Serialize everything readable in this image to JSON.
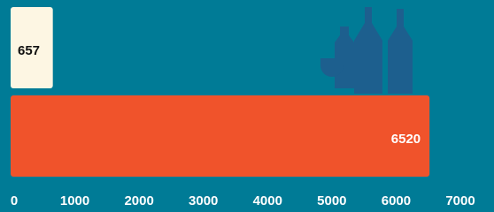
{
  "chart_data": {
    "type": "bar",
    "orientation": "horizontal",
    "categories": [
      null,
      null
    ],
    "values": [
      657,
      6520
    ],
    "colors": [
      "#fdf6e3",
      "#f0532b"
    ],
    "xlim": [
      0,
      7000
    ],
    "xticks": [
      0,
      1000,
      2000,
      3000,
      4000,
      5000,
      6000,
      7000
    ],
    "grid": false
  }
}
